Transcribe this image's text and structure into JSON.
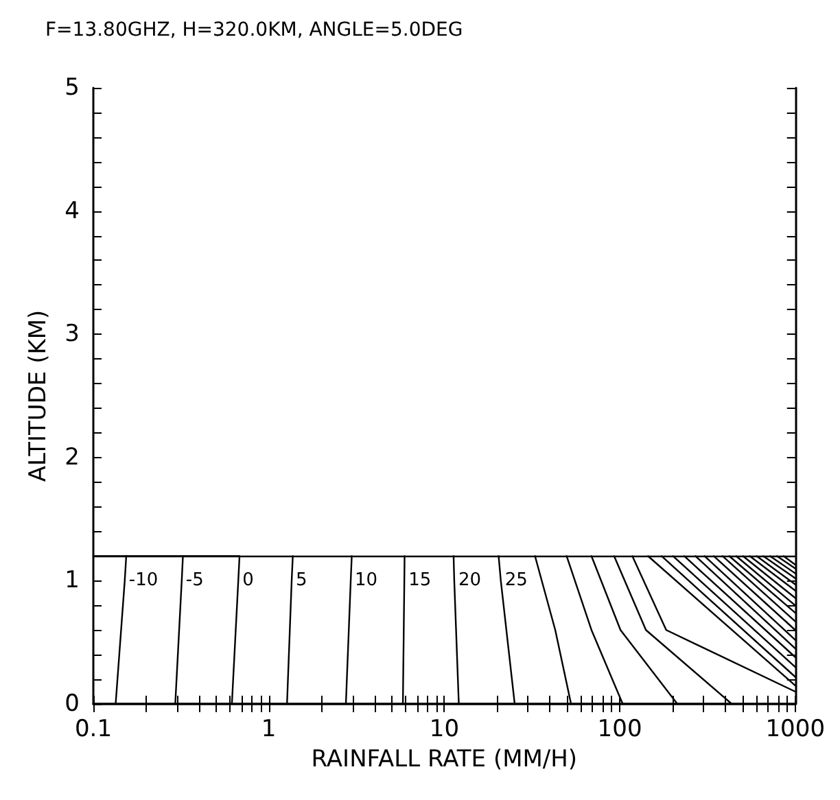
{
  "chart_data": {
    "type": "line",
    "title": "F=13.80GHZ, H=320.0KM, ANGLE=5.0DEG",
    "xlabel": "RAINFALL RATE (MM/H)",
    "ylabel": "ALTITUDE (KM)",
    "log": "x",
    "xlim": [
      0.1,
      1000
    ],
    "ylim": [
      0,
      5
    ],
    "xticks": [
      0.1,
      {
        "value": 0.2,
        "label": null
      },
      {
        "value": 0.3,
        "label": null
      },
      {
        "value": 0.4,
        "label": null
      },
      {
        "value": 0.5,
        "label": null
      },
      {
        "value": 0.6,
        "label": null
      },
      {
        "value": 0.7,
        "label": null
      },
      {
        "value": 0.8,
        "label": null
      },
      {
        "value": 0.9,
        "label": null
      },
      1,
      {
        "value": 2,
        "label": null
      },
      {
        "value": 3,
        "label": null
      },
      {
        "value": 4,
        "label": null
      },
      {
        "value": 5,
        "label": null
      },
      {
        "value": 6,
        "label": null
      },
      {
        "value": 7,
        "label": null
      },
      {
        "value": 8,
        "label": null
      },
      {
        "value": 9,
        "label": null
      },
      10,
      {
        "value": 20,
        "label": null
      },
      {
        "value": 30,
        "label": null
      },
      {
        "value": 40,
        "label": null
      },
      {
        "value": 50,
        "label": null
      },
      {
        "value": 60,
        "label": null
      },
      {
        "value": 70,
        "label": null
      },
      {
        "value": 80,
        "label": null
      },
      {
        "value": 90,
        "label": null
      },
      100,
      {
        "value": 200,
        "label": null
      },
      {
        "value": 300,
        "label": null
      },
      {
        "value": 400,
        "label": null
      },
      {
        "value": 500,
        "label": null
      },
      {
        "value": 600,
        "label": null
      },
      {
        "value": 700,
        "label": null
      },
      {
        "value": 800,
        "label": null
      },
      {
        "value": 900,
        "label": null
      },
      1000
    ],
    "yticks": [
      0,
      {
        "value": 0.2,
        "label": null
      },
      {
        "value": 0.4,
        "label": null
      },
      {
        "value": 0.6,
        "label": null
      },
      {
        "value": 0.8,
        "label": null
      },
      1,
      {
        "value": 1.2,
        "label": null
      },
      {
        "value": 1.4,
        "label": null
      },
      {
        "value": 1.6,
        "label": null
      },
      {
        "value": 1.8,
        "label": null
      },
      2,
      {
        "value": 2.2,
        "label": null
      },
      {
        "value": 2.4,
        "label": null
      },
      {
        "value": 2.6,
        "label": null
      },
      {
        "value": 2.8,
        "label": null
      },
      3,
      {
        "value": 3.2,
        "label": null
      },
      {
        "value": 3.4,
        "label": null
      },
      {
        "value": 3.6,
        "label": null
      },
      {
        "value": 3.8,
        "label": null
      },
      4,
      {
        "value": 4.2,
        "label": null
      },
      {
        "value": 4.4,
        "label": null
      },
      {
        "value": 4.6,
        "label": null
      },
      {
        "value": 4.8,
        "label": null
      },
      5
    ],
    "grid": false,
    "legend": false,
    "marker": "none",
    "line_style": "solid",
    "ref_lines": [
      {
        "axis": "y",
        "value": 1.2,
        "label": null,
        "color": "#000000"
      }
    ],
    "series": [
      {
        "name": "-10",
        "color": "#000000",
        "x": [
          0.154,
          0.151,
          0.134
        ],
        "values": [
          1.2,
          1.0,
          0
        ]
      },
      {
        "name": "-5",
        "color": "#000000",
        "x": [
          0.324,
          0.319,
          0.293
        ],
        "values": [
          1.2,
          1.0,
          0
        ]
      },
      {
        "name": "0",
        "color": "#000000",
        "x": [
          0.1,
          0.681,
          0.67,
          0.616
        ],
        "values": [
          1.2,
          1.2,
          1.0,
          0
        ]
      },
      {
        "name": "5",
        "color": "#000000",
        "x": [
          1.37,
          1.35,
          1.27
        ],
        "values": [
          1.2,
          1.0,
          0
        ]
      },
      {
        "name": "10",
        "color": "#000000",
        "x": [
          2.97,
          2.93,
          2.75
        ],
        "values": [
          1.2,
          1.0,
          0
        ]
      },
      {
        "name": "15",
        "color": "#000000",
        "x": [
          5.94,
          5.92,
          5.81
        ],
        "values": [
          1.2,
          1.0,
          0
        ]
      },
      {
        "name": "20",
        "color": "#000000",
        "x": [
          11.3,
          11.4,
          12.1
        ],
        "values": [
          1.2,
          1.0,
          0
        ]
      },
      {
        "name": "25",
        "color": "#000000",
        "x": [
          20.4,
          21.0,
          25.2
        ],
        "values": [
          1.2,
          1.0,
          0
        ]
      },
      {
        "color": "#000000",
        "x": [
          32.9,
          42.9,
          52.8
        ],
        "values": [
          1.2,
          0.6,
          0
        ]
      },
      {
        "color": "#000000",
        "x": [
          49.8,
          69.0,
          104
        ],
        "values": [
          1.2,
          0.6,
          0
        ]
      },
      {
        "color": "#000000",
        "x": [
          69.0,
          101,
          213
        ],
        "values": [
          1.2,
          0.6,
          0
        ]
      },
      {
        "color": "#000000",
        "x": [
          92.9,
          141,
          435
        ],
        "values": [
          1.2,
          0.6,
          0
        ]
      },
      {
        "color": "#000000",
        "x": [
          118,
          184,
          1000
        ],
        "values": [
          1.2,
          0.6,
          0.1
        ]
      },
      {
        "color": "#000000",
        "x": [
          145,
          1000
        ],
        "values": [
          1.2,
          0.15
        ]
      },
      {
        "color": "#000000",
        "x": [
          173,
          1000
        ],
        "values": [
          1.2,
          0.22
        ]
      },
      {
        "color": "#000000",
        "x": [
          201,
          1000
        ],
        "values": [
          1.2,
          0.3
        ]
      },
      {
        "color": "#000000",
        "x": [
          233,
          1000
        ],
        "values": [
          1.2,
          0.38
        ]
      },
      {
        "color": "#000000",
        "x": [
          270,
          1000
        ],
        "values": [
          1.2,
          0.45
        ]
      },
      {
        "color": "#000000",
        "x": [
          304,
          1000
        ],
        "values": [
          1.2,
          0.52
        ]
      },
      {
        "color": "#000000",
        "x": [
          343,
          1000
        ],
        "values": [
          1.2,
          0.6
        ]
      },
      {
        "color": "#000000",
        "x": [
          385,
          1000
        ],
        "values": [
          1.2,
          0.67
        ]
      },
      {
        "color": "#000000",
        "x": [
          421,
          1000
        ],
        "values": [
          1.2,
          0.74
        ]
      },
      {
        "color": "#000000",
        "x": [
          461,
          1000
        ],
        "values": [
          1.2,
          0.8
        ]
      },
      {
        "color": "#000000",
        "x": [
          504,
          1000
        ],
        "values": [
          1.2,
          0.86
        ]
      },
      {
        "color": "#000000",
        "x": [
          551,
          1000
        ],
        "values": [
          1.2,
          0.92
        ]
      },
      {
        "color": "#000000",
        "x": [
          603,
          1000
        ],
        "values": [
          1.2,
          0.97
        ]
      },
      {
        "color": "#000000",
        "x": [
          658,
          1000
        ],
        "values": [
          1.2,
          1.02
        ]
      },
      {
        "color": "#000000",
        "x": [
          719,
          1000
        ],
        "values": [
          1.2,
          1.06
        ]
      },
      {
        "color": "#000000",
        "x": [
          787,
          1000
        ],
        "values": [
          1.2,
          1.1
        ]
      },
      {
        "color": "#000000",
        "x": [
          859,
          1000
        ],
        "values": [
          1.2,
          1.13
        ]
      }
    ]
  }
}
